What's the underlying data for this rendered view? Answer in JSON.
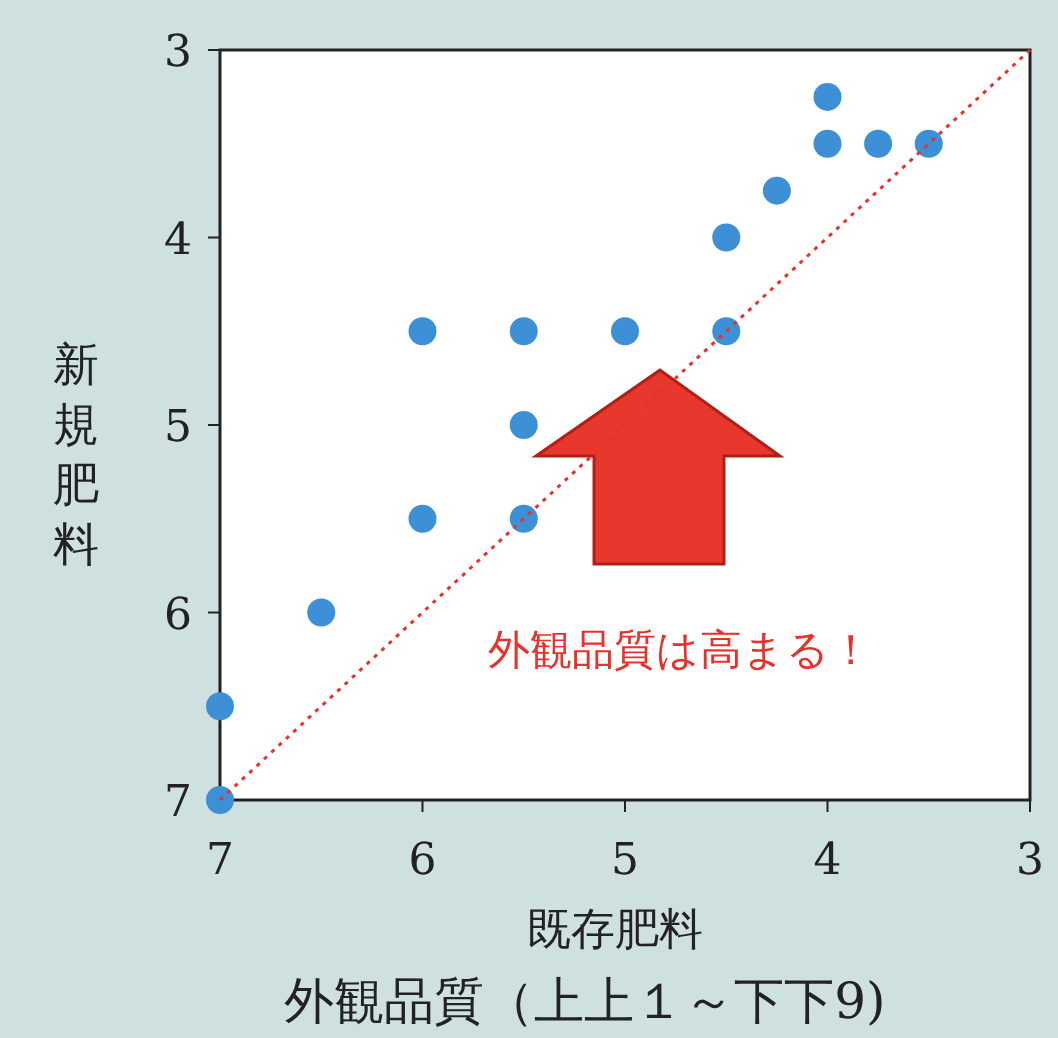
{
  "chart_data": {
    "type": "scatter",
    "title": "外観品質（上上１～下下9)",
    "xlabel": "既存肥料",
    "ylabel": "新規肥料",
    "xlim": [
      7,
      3
    ],
    "ylim": [
      7,
      3
    ],
    "xticks": [
      7,
      6,
      5,
      4,
      3
    ],
    "yticks": [
      3,
      4,
      5,
      6,
      7
    ],
    "grid": false,
    "marker": "circle",
    "series": [
      {
        "color": "#3d8fd6",
        "x": [
          7,
          7,
          6.5,
          6,
          5.5,
          5.5,
          6,
          5.5,
          5,
          4.5,
          4.5,
          4.25,
          4,
          4,
          3.75,
          3.5
        ],
        "values": [
          7,
          6.5,
          6,
          5.5,
          5.5,
          5,
          4.5,
          4.5,
          4.5,
          4.5,
          4,
          3.75,
          3.25,
          3.5,
          3.5,
          3.5
        ]
      },
      {
        "type": "line",
        "color": "#e8312a",
        "line_style": "dotted",
        "marker": "none",
        "x": [
          7,
          3
        ],
        "values": [
          7,
          3
        ]
      }
    ],
    "annotations": [
      "外観品質は高まる！"
    ]
  }
}
